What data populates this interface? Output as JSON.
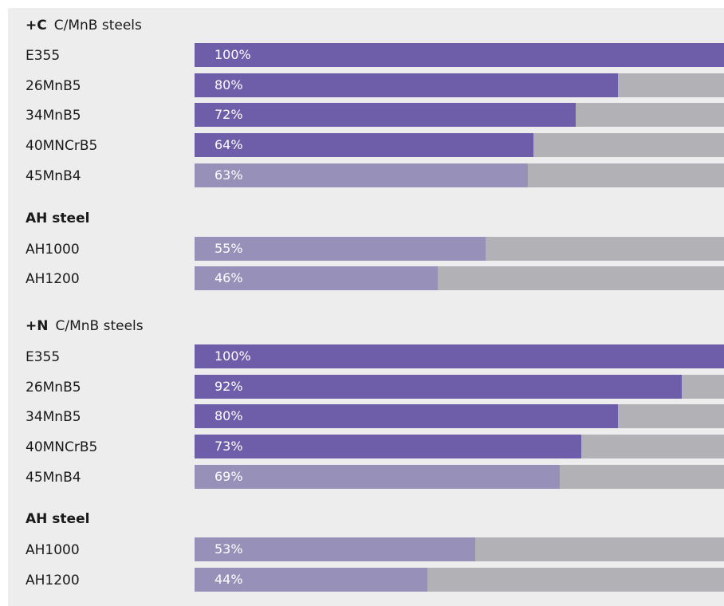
{
  "colors": {
    "dark_fill": "#6e5ea9",
    "light_fill": "#9791b9",
    "track": "#b2b2b6",
    "panel": "#ededed"
  },
  "chart_data": {
    "type": "bar",
    "orientation": "horizontal",
    "xlim": [
      0,
      100
    ],
    "unit": "%",
    "groups": [
      {
        "prefix": "+C",
        "title": "C/MnB steels",
        "bold_title": false,
        "items": [
          {
            "label": "E355",
            "value": 100,
            "value_label": "100%",
            "shade": "dark"
          },
          {
            "label": "26MnB5",
            "value": 80,
            "value_label": "80%",
            "shade": "dark"
          },
          {
            "label": "34MnB5",
            "value": 72,
            "value_label": "72%",
            "shade": "dark"
          },
          {
            "label": "40MNCrB5",
            "value": 64,
            "value_label": "64%",
            "shade": "dark"
          },
          {
            "label": "45MnB4",
            "value": 63,
            "value_label": "63%",
            "shade": "light"
          }
        ]
      },
      {
        "prefix": "",
        "title": "AH steel",
        "bold_title": true,
        "items": [
          {
            "label": "AH1000",
            "value": 55,
            "value_label": "55%",
            "shade": "light"
          },
          {
            "label": "AH1200",
            "value": 46,
            "value_label": "46%",
            "shade": "light"
          }
        ]
      },
      {
        "prefix": "+N",
        "title": "C/MnB steels",
        "bold_title": false,
        "items": [
          {
            "label": "E355",
            "value": 100,
            "value_label": "100%",
            "shade": "dark"
          },
          {
            "label": "26MnB5",
            "value": 92,
            "value_label": "92%",
            "shade": "dark"
          },
          {
            "label": "34MnB5",
            "value": 80,
            "value_label": "80%",
            "shade": "dark"
          },
          {
            "label": "40MNCrB5",
            "value": 73,
            "value_label": "73%",
            "shade": "dark"
          },
          {
            "label": "45MnB4",
            "value": 69,
            "value_label": "69%",
            "shade": "light"
          }
        ]
      },
      {
        "prefix": "",
        "title": "AH steel",
        "bold_title": true,
        "items": [
          {
            "label": "AH1000",
            "value": 53,
            "value_label": "53%",
            "shade": "light"
          },
          {
            "label": "AH1200",
            "value": 44,
            "value_label": "44%",
            "shade": "light"
          }
        ]
      }
    ]
  }
}
